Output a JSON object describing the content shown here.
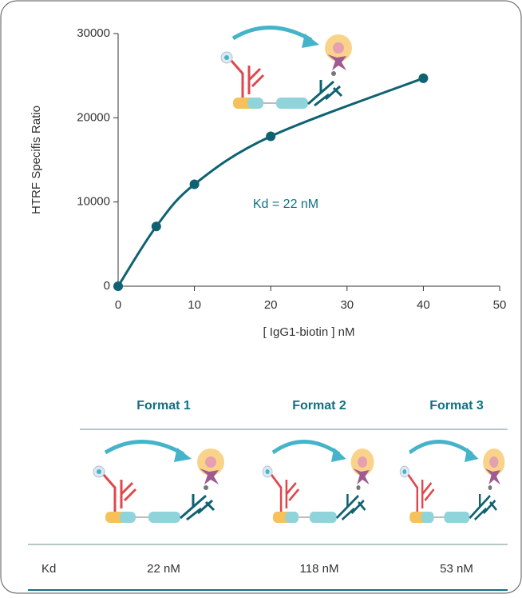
{
  "chart_data": {
    "type": "line",
    "markers": true,
    "x": [
      0,
      5,
      10,
      20,
      40
    ],
    "series": [
      {
        "name": null,
        "color": "#0f6272",
        "values": [
          0,
          7100,
          12100,
          17800,
          24700
        ]
      }
    ],
    "xlim": [
      0,
      50
    ],
    "xticks": [
      0,
      10,
      20,
      30,
      40,
      50
    ],
    "ylim": [
      0,
      30000
    ],
    "yticks": [
      0,
      10000,
      20000,
      30000
    ],
    "xlabel": "[ IgG1-biotin ] nM",
    "ylabel": "HTRF Specifis Ratio",
    "annotation": "Kd = 22 nM",
    "annotation_color": "#0f7282"
  },
  "table": {
    "header": [
      "Format 1",
      "Format 2",
      "Format 3"
    ],
    "rows": [
      [
        "Kd",
        "22 nM",
        "118 nM",
        "53 nM"
      ]
    ]
  }
}
